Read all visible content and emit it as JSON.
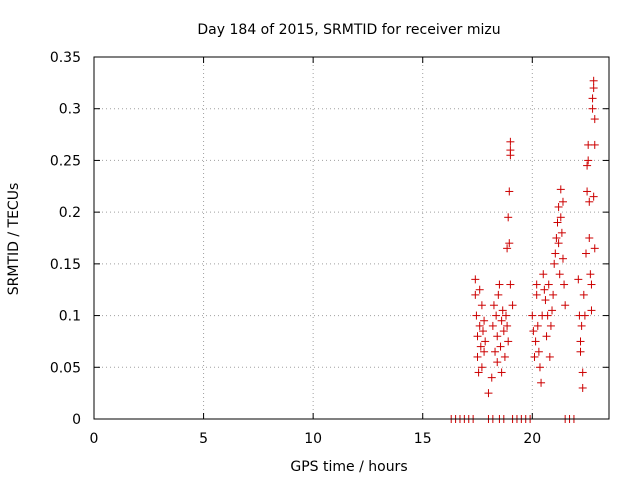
{
  "colors": {
    "series": "#cc0000",
    "grid": "#a0a0a0",
    "axis": "#000000"
  },
  "chart_data": {
    "type": "scatter",
    "title": "Day 184 of 2015, SRMTID for receiver mizu",
    "xlabel": "GPS time / hours",
    "ylabel": "SRMTID / TECUs",
    "xlim": [
      0,
      23.5
    ],
    "ylim": [
      0,
      0.35
    ],
    "xticks": [
      {
        "value": 0,
        "label": "0"
      },
      {
        "value": 5,
        "label": "5"
      },
      {
        "value": 10,
        "label": "10"
      },
      {
        "value": 15,
        "label": "15"
      },
      {
        "value": 20,
        "label": "20"
      }
    ],
    "yticks": [
      {
        "value": 0,
        "label": "0"
      },
      {
        "value": 0.05,
        "label": "0.05"
      },
      {
        "value": 0.1,
        "label": "0.1"
      },
      {
        "value": 0.15,
        "label": "0.15"
      },
      {
        "value": 0.2,
        "label": "0.2"
      },
      {
        "value": 0.25,
        "label": "0.25"
      },
      {
        "value": 0.3,
        "label": "0.3"
      },
      {
        "value": 0.35,
        "label": "0.35"
      }
    ],
    "grid": true,
    "marker": "+",
    "series": [
      {
        "points": [
          [
            16.3,
            0
          ],
          [
            16.5,
            0
          ],
          [
            16.7,
            0
          ],
          [
            16.9,
            0
          ],
          [
            17.1,
            0
          ],
          [
            17.3,
            0
          ],
          [
            18.0,
            0
          ],
          [
            18.2,
            0
          ],
          [
            18.5,
            0
          ],
          [
            18.7,
            0
          ],
          [
            19.1,
            0
          ],
          [
            19.3,
            0
          ],
          [
            19.5,
            0
          ],
          [
            19.7,
            0
          ],
          [
            19.9,
            0
          ],
          [
            21.5,
            0
          ],
          [
            21.7,
            0
          ],
          [
            21.9,
            0
          ],
          [
            17.4,
            0.135
          ],
          [
            17.4,
            0.12
          ],
          [
            17.45,
            0.1
          ],
          [
            17.5,
            0.08
          ],
          [
            17.5,
            0.06
          ],
          [
            17.55,
            0.045
          ],
          [
            17.6,
            0.125
          ],
          [
            17.6,
            0.09
          ],
          [
            17.65,
            0.07
          ],
          [
            17.7,
            0.11
          ],
          [
            17.7,
            0.05
          ],
          [
            17.75,
            0.085
          ],
          [
            17.8,
            0.095
          ],
          [
            17.8,
            0.065
          ],
          [
            17.85,
            0.075
          ],
          [
            18.0,
            0.025
          ],
          [
            18.15,
            0.04
          ],
          [
            18.2,
            0.09
          ],
          [
            18.25,
            0.11
          ],
          [
            18.3,
            0.065
          ],
          [
            18.35,
            0.1
          ],
          [
            18.4,
            0.08
          ],
          [
            18.4,
            0.055
          ],
          [
            18.45,
            0.12
          ],
          [
            18.5,
            0.13
          ],
          [
            18.55,
            0.07
          ],
          [
            18.6,
            0.095
          ],
          [
            18.6,
            0.045
          ],
          [
            18.65,
            0.105
          ],
          [
            18.7,
            0.085
          ],
          [
            18.75,
            0.06
          ],
          [
            18.8,
            0.1
          ],
          [
            18.85,
            0.09
          ],
          [
            18.9,
            0.075
          ],
          [
            18.85,
            0.165
          ],
          [
            18.9,
            0.195
          ],
          [
            18.95,
            0.22
          ],
          [
            19.0,
            0.255
          ],
          [
            19.0,
            0.26
          ],
          [
            19.0,
            0.268
          ],
          [
            18.95,
            0.17
          ],
          [
            19.1,
            0.11
          ],
          [
            19.0,
            0.13
          ],
          [
            20.0,
            0.1
          ],
          [
            20.05,
            0.085
          ],
          [
            20.1,
            0.06
          ],
          [
            20.15,
            0.075
          ],
          [
            20.2,
            0.13
          ],
          [
            20.2,
            0.12
          ],
          [
            20.25,
            0.09
          ],
          [
            20.3,
            0.065
          ],
          [
            20.35,
            0.05
          ],
          [
            20.4,
            0.035
          ],
          [
            20.45,
            0.1
          ],
          [
            20.5,
            0.14
          ],
          [
            20.55,
            0.125
          ],
          [
            20.6,
            0.115
          ],
          [
            20.65,
            0.08
          ],
          [
            20.7,
            0.1
          ],
          [
            20.75,
            0.13
          ],
          [
            20.8,
            0.06
          ],
          [
            20.85,
            0.09
          ],
          [
            20.9,
            0.105
          ],
          [
            20.95,
            0.12
          ],
          [
            21.0,
            0.15
          ],
          [
            21.05,
            0.16
          ],
          [
            21.1,
            0.175
          ],
          [
            21.15,
            0.19
          ],
          [
            21.2,
            0.17
          ],
          [
            21.2,
            0.205
          ],
          [
            21.25,
            0.14
          ],
          [
            21.3,
            0.222
          ],
          [
            21.3,
            0.195
          ],
          [
            21.35,
            0.18
          ],
          [
            21.4,
            0.155
          ],
          [
            21.45,
            0.13
          ],
          [
            21.5,
            0.11
          ],
          [
            21.4,
            0.21
          ],
          [
            22.1,
            0.135
          ],
          [
            22.15,
            0.1
          ],
          [
            22.2,
            0.075
          ],
          [
            22.2,
            0.065
          ],
          [
            22.25,
            0.09
          ],
          [
            22.3,
            0.045
          ],
          [
            22.3,
            0.03
          ],
          [
            22.35,
            0.12
          ],
          [
            22.4,
            0.1
          ],
          [
            22.45,
            0.16
          ],
          [
            22.5,
            0.22
          ],
          [
            22.5,
            0.245
          ],
          [
            22.55,
            0.25
          ],
          [
            22.55,
            0.265
          ],
          [
            22.6,
            0.21
          ],
          [
            22.6,
            0.175
          ],
          [
            22.65,
            0.14
          ],
          [
            22.7,
            0.13
          ],
          [
            22.7,
            0.105
          ],
          [
            22.75,
            0.3
          ],
          [
            22.75,
            0.31
          ],
          [
            22.8,
            0.32
          ],
          [
            22.8,
            0.327
          ],
          [
            22.85,
            0.29
          ],
          [
            22.85,
            0.265
          ],
          [
            22.8,
            0.215
          ],
          [
            22.85,
            0.165
          ]
        ]
      }
    ]
  }
}
